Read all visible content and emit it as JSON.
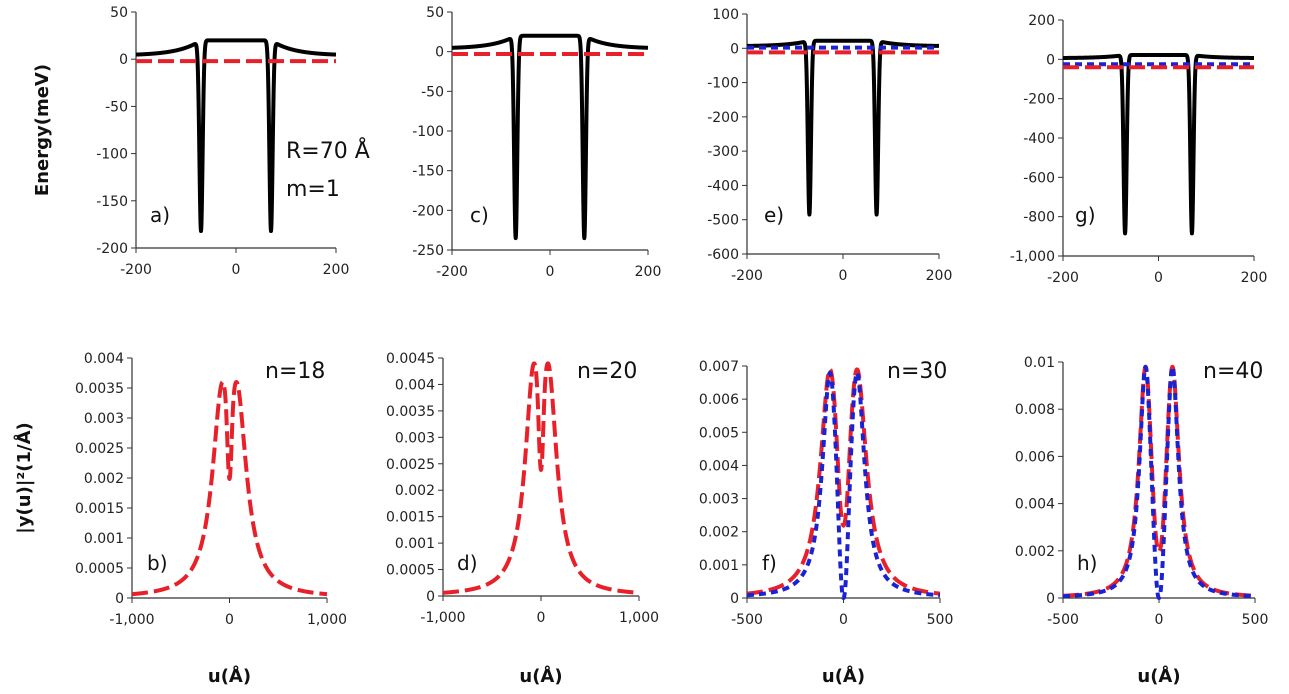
{
  "chart_data": [
    {
      "id": "a",
      "type": "line",
      "panel_label": "a)",
      "title": "",
      "ylabel": "Energy(meV)",
      "xlabel": "",
      "xlim": [
        -200,
        200
      ],
      "ylim": [
        -200,
        50
      ],
      "xticks": [
        "-200",
        "0",
        "200"
      ],
      "yticks": [
        "50",
        "0",
        "-50",
        "-100",
        "-150",
        "-200"
      ],
      "grid": false,
      "annotations": [
        "R=70 Å",
        "m=1"
      ],
      "series": [
        {
          "kind": "potential",
          "color": "#000000",
          "style": "solid",
          "flat": 20,
          "wells": [
            -70,
            70
          ],
          "well_min": -182
        },
        {
          "kind": "level",
          "color": "#e8202a",
          "style": "dashed",
          "y": -2
        }
      ]
    },
    {
      "id": "c",
      "type": "line",
      "panel_label": "c)",
      "title": "",
      "ylabel": "",
      "xlabel": "",
      "xlim": [
        -200,
        200
      ],
      "ylim": [
        -250,
        50
      ],
      "xticks": [
        "-200",
        "0",
        "200"
      ],
      "yticks": [
        "50",
        "0",
        "-50",
        "-100",
        "-150",
        "-200",
        "-250"
      ],
      "grid": false,
      "annotations": [],
      "series": [
        {
          "kind": "potential",
          "color": "#000000",
          "style": "solid",
          "flat": 20,
          "wells": [
            -70,
            70
          ],
          "well_min": -235
        },
        {
          "kind": "level",
          "color": "#e8202a",
          "style": "dashed",
          "y": -3
        }
      ]
    },
    {
      "id": "e",
      "type": "line",
      "panel_label": "e)",
      "title": "",
      "ylabel": "",
      "xlabel": "",
      "xlim": [
        -200,
        200
      ],
      "ylim": [
        -600,
        100
      ],
      "xticks": [
        "-200",
        "0",
        "200"
      ],
      "yticks": [
        "100",
        "0",
        "-100",
        "-200",
        "-300",
        "-400",
        "-500",
        "-600"
      ],
      "grid": false,
      "annotations": [],
      "series": [
        {
          "kind": "potential",
          "color": "#000000",
          "style": "solid",
          "flat": 22,
          "wells": [
            -70,
            70
          ],
          "well_min": -485
        },
        {
          "kind": "level",
          "color": "#1a22d4",
          "style": "dotted",
          "y": 2
        },
        {
          "kind": "level",
          "color": "#e8202a",
          "style": "dashed",
          "y": -12
        }
      ]
    },
    {
      "id": "g",
      "type": "line",
      "panel_label": "g)",
      "title": "",
      "ylabel": "",
      "xlabel": "",
      "xlim": [
        -200,
        200
      ],
      "ylim": [
        -1000,
        200
      ],
      "xticks": [
        "-200",
        "0",
        "200"
      ],
      "yticks": [
        "200",
        "0",
        "-200",
        "-400",
        "-600",
        "-800",
        "-1,000"
      ],
      "grid": false,
      "annotations": [],
      "series": [
        {
          "kind": "potential",
          "color": "#000000",
          "style": "solid",
          "flat": 22,
          "wells": [
            -70,
            70
          ],
          "well_min": -885
        },
        {
          "kind": "level",
          "color": "#1a22d4",
          "style": "dotted",
          "y": -25
        },
        {
          "kind": "level",
          "color": "#e8202a",
          "style": "dashed",
          "y": -40
        }
      ]
    },
    {
      "id": "b",
      "type": "line",
      "panel_label": "b)",
      "title": "",
      "ylabel": "|y(u)|²(1/Å)",
      "xlabel": "u(Å)",
      "xlim": [
        -1000,
        1000
      ],
      "ylim": [
        0,
        0.004
      ],
      "xticks": [
        "-1,000",
        "0",
        "1,000"
      ],
      "yticks": [
        "0.004",
        "0.0035",
        "0.003",
        "0.0025",
        "0.002",
        "0.0015",
        "0.001",
        "0.0005",
        "0"
      ],
      "grid": false,
      "annotations": [
        "n=18"
      ],
      "series": [
        {
          "kind": "density",
          "color": "#e8202a",
          "style": "dashed",
          "peaks": [
            -70,
            70
          ],
          "peak": 0.0036,
          "dip": 0.0019,
          "width": 125
        }
      ]
    },
    {
      "id": "d",
      "type": "line",
      "panel_label": "d)",
      "title": "",
      "ylabel": "",
      "xlabel": "u(Å)",
      "xlim": [
        -1000,
        1000
      ],
      "ylim": [
        0,
        0.0045
      ],
      "xticks": [
        "-1,000",
        "0",
        "1,000"
      ],
      "yticks": [
        "0.0045",
        "0.004",
        "0.0035",
        "0.003",
        "0.0025",
        "0.002",
        "0.0015",
        "0.001",
        "0.0005",
        "0"
      ],
      "grid": false,
      "annotations": [
        "n=20"
      ],
      "series": [
        {
          "kind": "density",
          "color": "#e8202a",
          "style": "dashed",
          "peaks": [
            -70,
            70
          ],
          "peak": 0.0044,
          "dip": 0.0023,
          "width": 110
        }
      ]
    },
    {
      "id": "f",
      "type": "line",
      "panel_label": "f)",
      "title": "",
      "ylabel": "",
      "xlabel": "u(Å)",
      "xlim": [
        -500,
        500
      ],
      "ylim": [
        0,
        0.007
      ],
      "xticks": [
        "-500",
        "0",
        "500"
      ],
      "yticks": [
        "0.007",
        "0.006",
        "0.005",
        "0.004",
        "0.003",
        "0.002",
        "0.001",
        "0"
      ],
      "grid": false,
      "annotations": [
        "n=30"
      ],
      "series": [
        {
          "kind": "density",
          "color": "#e8202a",
          "style": "dashed",
          "peaks": [
            -70,
            70
          ],
          "peak": 0.0069,
          "dip": 0.0021,
          "width": 60
        },
        {
          "kind": "density",
          "color": "#1a22d4",
          "style": "dotted",
          "peaks": [
            -70,
            70
          ],
          "peak": 0.0068,
          "dip": 0.0,
          "width": 48,
          "odd": true
        }
      ]
    },
    {
      "id": "h",
      "type": "line",
      "panel_label": "h)",
      "title": "",
      "ylabel": "",
      "xlabel": "u(Å)",
      "xlim": [
        -500,
        500
      ],
      "ylim": [
        0,
        0.01
      ],
      "xticks": [
        "-500",
        "0",
        "500"
      ],
      "yticks": [
        "0.01",
        "0.008",
        "0.006",
        "0.004",
        "0.002",
        "0"
      ],
      "grid": false,
      "annotations": [
        "n=40"
      ],
      "series": [
        {
          "kind": "density",
          "color": "#e8202a",
          "style": "dashed",
          "peaks": [
            -70,
            70
          ],
          "peak": 0.0098,
          "dip": 0.0019,
          "width": 42
        },
        {
          "kind": "density",
          "color": "#1a22d4",
          "style": "dotted",
          "peaks": [
            -70,
            70
          ],
          "peak": 0.0098,
          "dip": 0.0,
          "width": 38,
          "odd": true
        }
      ]
    }
  ]
}
